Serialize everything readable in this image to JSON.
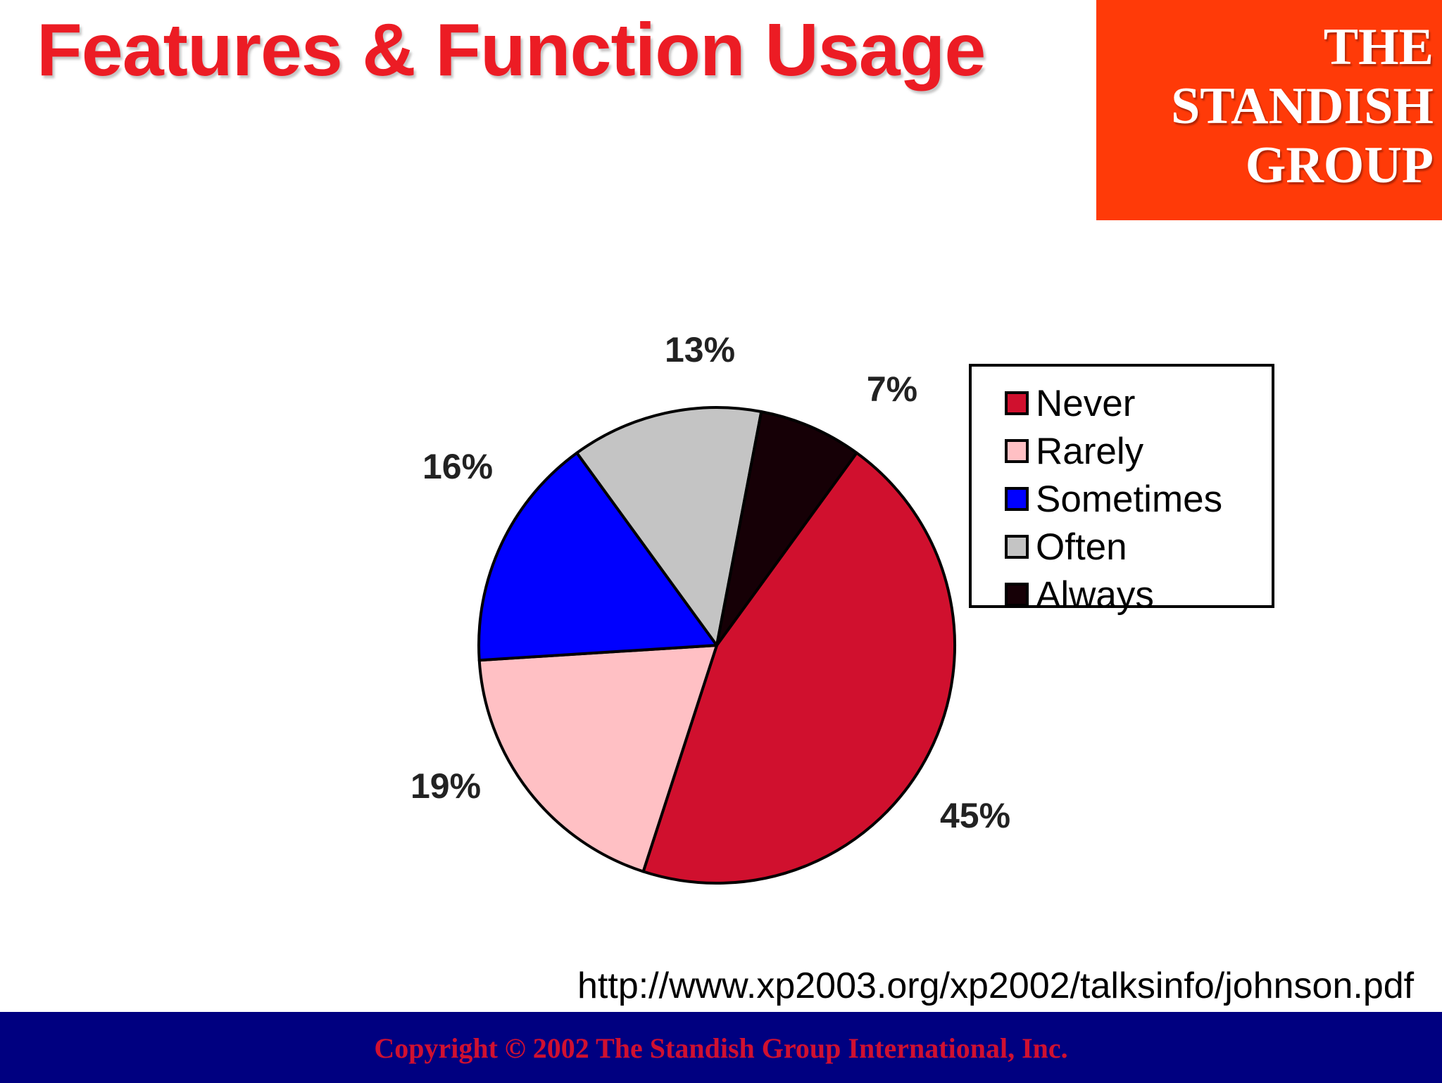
{
  "title": "Features & Function Usage",
  "logo": {
    "line1": "THE",
    "line2": "STANDISH",
    "line3": "GROUP"
  },
  "chart_data": {
    "type": "pie",
    "categories": [
      "Never",
      "Rarely",
      "Sometimes",
      "Often",
      "Always"
    ],
    "values": [
      45,
      19,
      16,
      13,
      7
    ],
    "value_labels": [
      "45%",
      "19%",
      "16%",
      "13%",
      "7%"
    ],
    "colors": [
      "#d0102e",
      "#ffc0c4",
      "#0000ff",
      "#c4c4c4",
      "#160006"
    ],
    "legend_position": "right"
  },
  "url": "http://www.xp2003.org/xp2002/talksinfo/johnson.pdf",
  "footer": {
    "copyright": "Copyright © 2002 The Standish Group International, Inc."
  },
  "colors": {
    "title": "#ec1c24",
    "logo_bg": "#ff3a08",
    "footer_bg": "#000080"
  }
}
